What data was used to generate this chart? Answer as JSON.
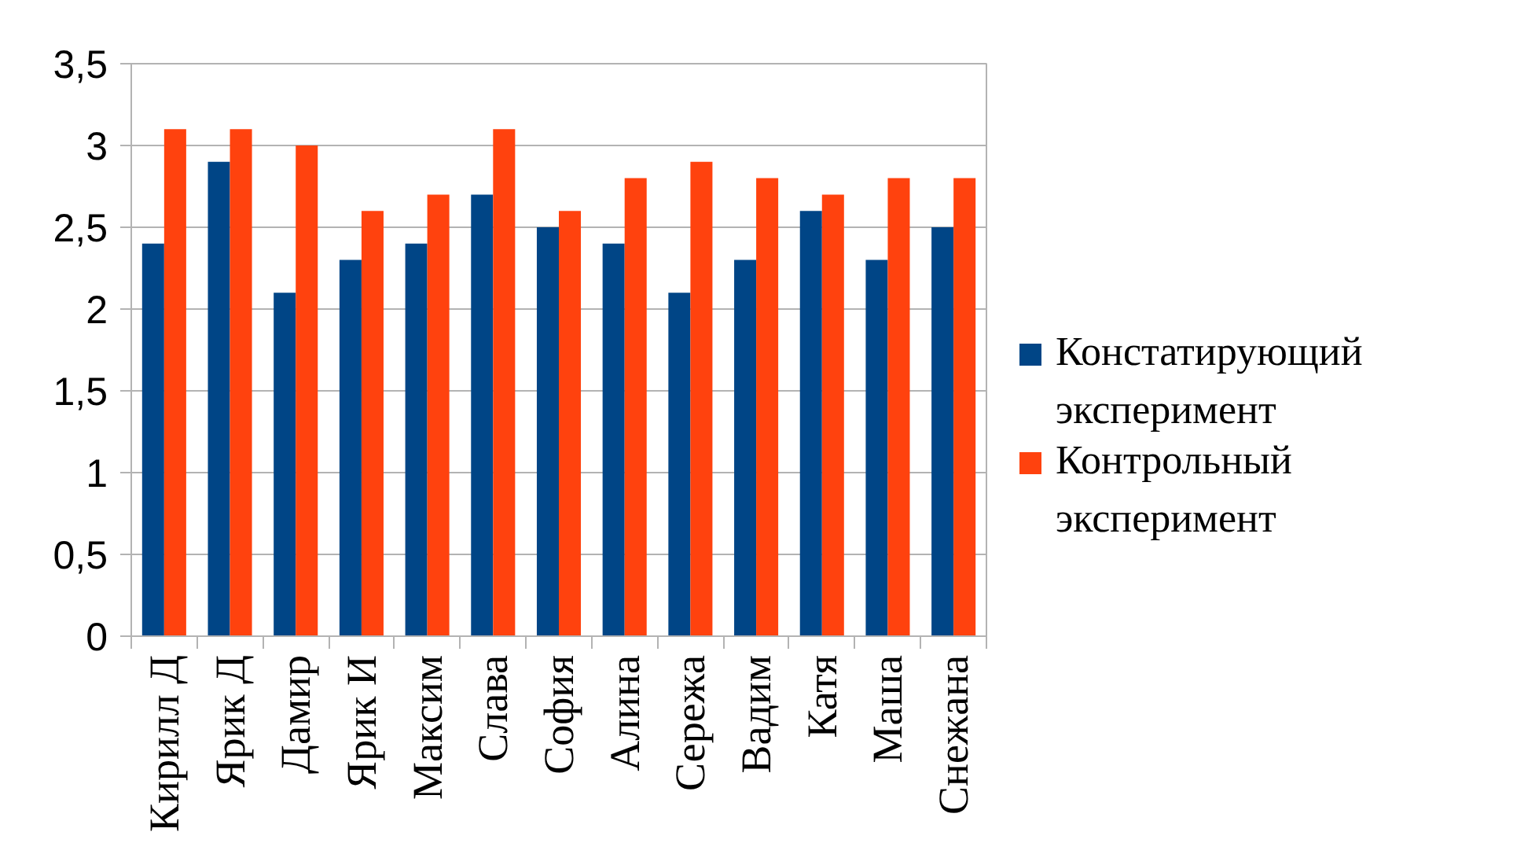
{
  "chart_data": {
    "type": "bar",
    "categories": [
      "Кирилл Д",
      "Ярик Д",
      "Дамир",
      "Ярик И",
      "Максим",
      "Слава",
      "София",
      "Алина",
      "Сережа",
      "Вадим",
      "Катя",
      "Маша",
      "Снежана"
    ],
    "series": [
      {
        "name": "Констатирующий эксперимент",
        "color": "#004586",
        "values": [
          2.4,
          2.9,
          2.1,
          2.3,
          2.4,
          2.7,
          2.5,
          2.4,
          2.1,
          2.3,
          2.6,
          2.3,
          2.5
        ]
      },
      {
        "name": "Контрольный эксперимент",
        "color": "#ff420e",
        "values": [
          3.1,
          3.1,
          3.0,
          2.6,
          2.7,
          3.1,
          2.6,
          2.8,
          2.9,
          2.8,
          2.7,
          2.8,
          2.8
        ]
      }
    ],
    "ylim": [
      0,
      3.5
    ],
    "yticks": [
      0,
      {
        "value": 0.5,
        "label": "0,5"
      },
      1,
      {
        "value": 1.5,
        "label": "1,5"
      },
      2,
      {
        "value": 2.5,
        "label": "2,5"
      },
      3,
      {
        "value": 3.5,
        "label": "3,5"
      }
    ],
    "grid": "y",
    "legend": "right"
  }
}
